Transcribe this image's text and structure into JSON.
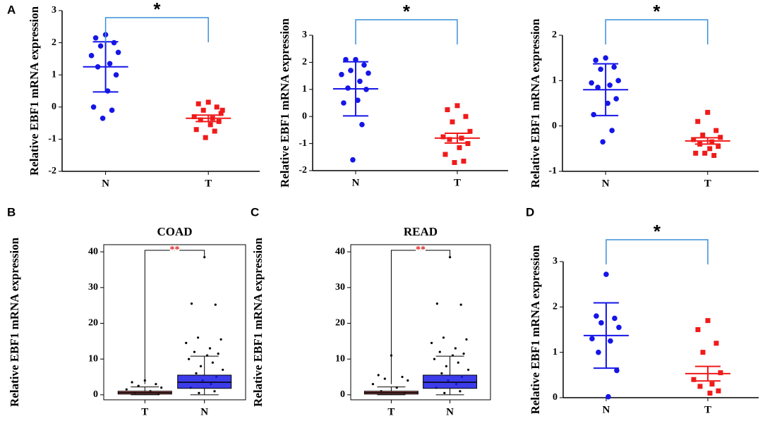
{
  "chart_data": [
    {
      "type": "dot",
      "panel": "A",
      "ylabel": "Relative EBF1 mRNA expression",
      "categories": [
        "N",
        "T"
      ],
      "colors": [
        "#1515e8",
        "#f01a1a"
      ],
      "markers": [
        "circle",
        "square"
      ],
      "points": [
        [
          2.25,
          2.15,
          2.0,
          1.9,
          1.7,
          1.6,
          1.35,
          1.25,
          1.0,
          0.5,
          0.0,
          -0.1,
          -0.35
        ],
        [
          0.15,
          0.1,
          0.0,
          -0.1,
          -0.2,
          -0.3,
          -0.35,
          -0.4,
          -0.45,
          -0.55,
          -0.7,
          -0.75,
          -0.95,
          -0.1
        ]
      ],
      "mean": [
        1.25,
        -0.35
      ],
      "error": [
        0.78,
        0.1
      ],
      "significance": "*",
      "bracket_color": "#3b8fd9",
      "ylim": [
        -2,
        3
      ],
      "yticks": [
        -2,
        -1,
        0,
        1,
        2,
        3
      ]
    },
    {
      "type": "dot",
      "ylabel": "Relative EBF1 mRNA expression",
      "categories": [
        "N",
        "T"
      ],
      "colors": [
        "#1515e8",
        "#f01a1a"
      ],
      "markers": [
        "circle",
        "square"
      ],
      "points": [
        [
          2.1,
          2.1,
          1.9,
          1.7,
          1.6,
          1.55,
          1.3,
          1.05,
          1.0,
          0.6,
          0.5,
          -0.3,
          -1.6
        ],
        [
          0.4,
          0.25,
          0.0,
          -0.2,
          -0.55,
          -0.75,
          -0.8,
          -0.85,
          -1.0,
          -1.15,
          -1.4,
          -1.65,
          -1.7
        ]
      ],
      "mean": [
        1.02,
        -0.8
      ],
      "error": [
        1.0,
        0.18
      ],
      "significance": "*",
      "bracket_color": "#3b8fd9",
      "ylim": [
        -2,
        3
      ],
      "yticks": [
        -2,
        -1,
        0,
        1,
        2,
        3
      ]
    },
    {
      "type": "dot",
      "ylabel": "Relative EBF1 mRNA expression",
      "categories": [
        "N",
        "T"
      ],
      "colors": [
        "#1515e8",
        "#f01a1a"
      ],
      "markers": [
        "circle",
        "square"
      ],
      "points": [
        [
          1.5,
          1.45,
          1.3,
          1.25,
          1.0,
          0.95,
          0.9,
          0.85,
          0.6,
          0.5,
          0.25,
          -0.1,
          -0.35
        ],
        [
          0.3,
          0.1,
          -0.1,
          -0.2,
          -0.25,
          -0.3,
          -0.35,
          -0.4,
          -0.45,
          -0.5,
          -0.6,
          -0.65,
          -0.6
        ]
      ],
      "mean": [
        0.8,
        -0.33
      ],
      "error": [
        0.57,
        0.07
      ],
      "significance": "*",
      "bracket_color": "#3b8fd9",
      "ylim": [
        -1,
        2
      ],
      "yticks": [
        -1,
        0,
        1,
        2
      ]
    },
    {
      "type": "box",
      "panel": "B",
      "title": "COAD",
      "ylabel": "Relative EBF1 mRNA expression",
      "categories": [
        "T",
        "N"
      ],
      "colors": [
        "#b03a3a",
        "#1a1ae6"
      ],
      "boxes": [
        {
          "low": 0,
          "q1": 0.2,
          "median": 0.6,
          "q3": 1.0,
          "high": 2.2
        },
        {
          "low": 0,
          "q1": 1.8,
          "median": 3.5,
          "q3": 5.5,
          "high": 10.8
        }
      ],
      "points": [
        [
          4,
          3.5,
          3,
          2.5,
          2,
          1.5,
          1,
          0.5,
          0.2
        ],
        [
          38.5,
          25.5,
          25.2,
          16,
          15.5,
          14.5,
          13,
          12,
          11.5,
          11,
          10,
          9,
          8,
          7,
          6,
          5,
          4,
          3,
          2,
          1,
          0.5
        ]
      ],
      "significance": "**",
      "sig_color": "#e02020",
      "ylim": [
        -1.4,
        42
      ],
      "yticks": [
        0,
        10,
        20,
        30,
        40
      ]
    },
    {
      "type": "box",
      "panel": "C",
      "title": "READ",
      "ylabel": "Relative EBF1 mRNA expression",
      "categories": [
        "T",
        "N"
      ],
      "colors": [
        "#b03a3a",
        "#1a1ae6"
      ],
      "boxes": [
        {
          "low": 0,
          "q1": 0.2,
          "median": 0.6,
          "q3": 1.0,
          "high": 2.2
        },
        {
          "low": 0,
          "q1": 1.8,
          "median": 3.5,
          "q3": 5.5,
          "high": 10.8
        }
      ],
      "points": [
        [
          11,
          5.5,
          5,
          4.5,
          4,
          3,
          2,
          1,
          0.5
        ],
        [
          38.5,
          25.5,
          25.2,
          16,
          15.5,
          14.5,
          13,
          12,
          11.5,
          11,
          10,
          9,
          8,
          7,
          6,
          5,
          4,
          3,
          2,
          1,
          0.5
        ]
      ],
      "significance": "**",
      "sig_color": "#e02020",
      "ylim": [
        -1.4,
        42
      ],
      "yticks": [
        0,
        10,
        20,
        30,
        40
      ]
    },
    {
      "type": "dot",
      "panel": "D",
      "ylabel": "Relative EBF1 mRNA expression",
      "categories": [
        "N",
        "T"
      ],
      "colors": [
        "#1515e8",
        "#f01a1a"
      ],
      "markers": [
        "circle",
        "square"
      ],
      "points": [
        [
          2.72,
          1.8,
          1.75,
          1.65,
          1.55,
          1.3,
          1.25,
          1.0,
          0.6,
          0.02
        ],
        [
          1.7,
          1.5,
          1.2,
          1.0,
          0.55,
          0.4,
          0.3,
          0.25,
          0.15,
          0.1
        ]
      ],
      "mean": [
        1.37,
        0.53
      ],
      "error": [
        0.72,
        0.16
      ],
      "significance": "*",
      "bracket_color": "#3b8fd9",
      "ylim": [
        0,
        3
      ],
      "yticks": [
        0,
        1,
        2,
        3
      ]
    }
  ]
}
